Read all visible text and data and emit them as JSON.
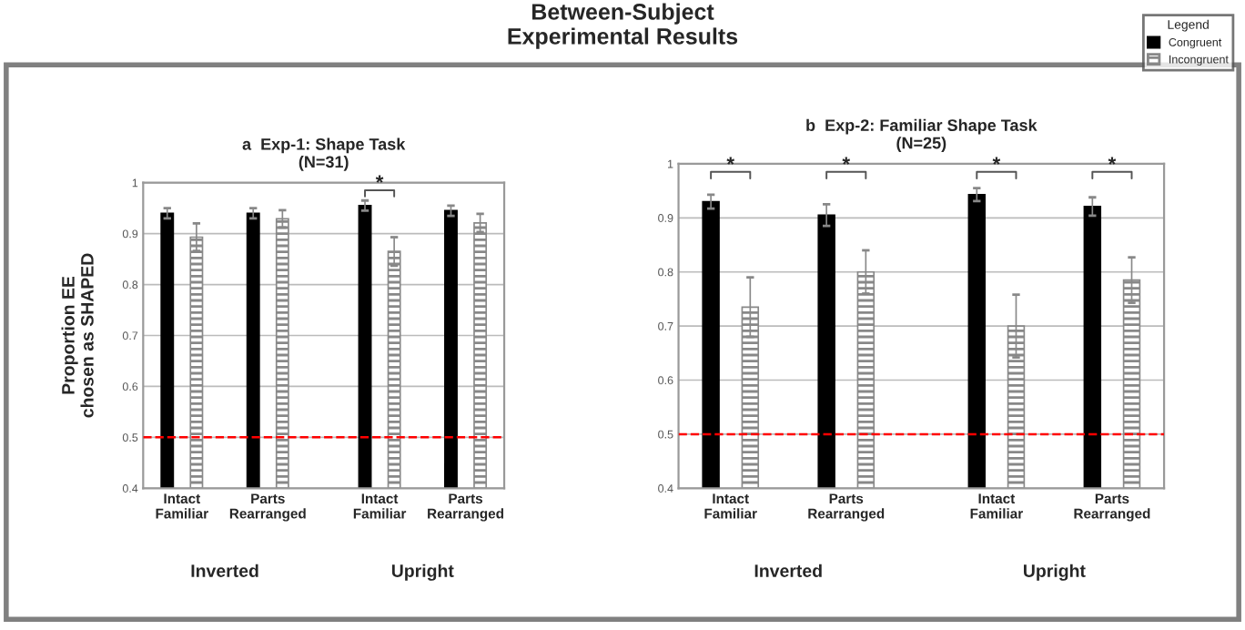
{
  "chart_data": [
    {
      "type": "bar",
      "title": "Between-Subject\nExperimental Results",
      "subtitle": "a  Exp-1: Shape Task\n(N=31)",
      "ylabel": "Proportion EE\nchosen as SHAPED",
      "categories": [
        "Intact\nFamiliar",
        "Parts\nRearranged",
        "Intact\nFamiliar",
        "Parts\nRearranged"
      ],
      "series": [
        {
          "color": "#000000",
          "values": [
            0.94,
            0.94,
            0.955,
            0.945
          ],
          "errors": [
            0.01,
            0.01,
            0.01,
            0.01
          ]
        },
        {
          "color": "#888888",
          "values": [
            0.893,
            0.929,
            0.865,
            0.921
          ],
          "errors": [
            0.027,
            0.017,
            0.028,
            0.018
          ]
        }
      ],
      "ylim": [
        0.4,
        1
      ],
      "yticks": [
        0.4,
        0.5,
        0.6,
        0.7,
        0.8,
        0.9,
        1
      ],
      "grid": "y",
      "ref_lines": [
        {
          "axis": "y",
          "value": 0.5,
          "color": "#ff0000",
          "line_style": "dashed"
        }
      ],
      "annotations": [
        "Inverted",
        "Upright",
        "*"
      ]
    },
    {
      "type": "bar",
      "subtitle": "b  Exp-2: Familiar Shape Task\n(N=25)",
      "legend_title": "Legend",
      "categories": [
        "Intact\nFamiliar",
        "Parts\nRearranged",
        "Intact\nFamiliar",
        "Parts\nRearranged"
      ],
      "series": [
        {
          "name": "Congruent",
          "color": "#000000",
          "values": [
            0.93,
            0.905,
            0.943,
            0.921
          ],
          "errors": [
            0.013,
            0.02,
            0.012,
            0.017
          ]
        },
        {
          "name": "Incongruent",
          "color": "#888888",
          "values": [
            0.735,
            0.8,
            0.7,
            0.785
          ],
          "errors": [
            0.055,
            0.04,
            0.058,
            0.042
          ]
        }
      ],
      "ylim": [
        0.4,
        1
      ],
      "yticks": [
        0.4,
        0.5,
        0.6,
        0.7,
        0.8,
        0.9,
        1
      ],
      "grid": "y",
      "legend": "top right",
      "ref_lines": [
        {
          "axis": "y",
          "value": 0.5,
          "color": "#ff0000",
          "line_style": "dashed"
        }
      ],
      "annotations": [
        "Inverted",
        "Upright",
        "*",
        "*",
        "*",
        "*"
      ]
    }
  ]
}
